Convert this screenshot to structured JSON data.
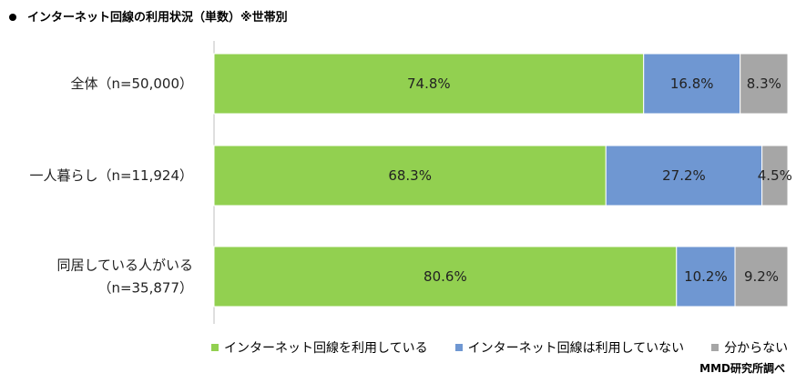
{
  "title": "インターネット回線の利用状況（単数）※世帯別",
  "source": "MMD研究所調べ",
  "colors": {
    "using": "#92d050",
    "not_using": "#6f97d2",
    "unknown": "#a6a6a6"
  },
  "chart_data": {
    "type": "bar",
    "orientation": "horizontal",
    "stacked": true,
    "percent": true,
    "categories": [
      [
        "全体（n=50,000）"
      ],
      [
        "一人暮らし（n=11,924）"
      ],
      [
        "同居している人がいる",
        "（n=35,877）"
      ]
    ],
    "series": [
      {
        "name": "インターネット回線を利用している",
        "values": [
          74.8,
          68.3,
          80.6
        ],
        "labels": [
          "74.8%",
          "68.3%",
          "80.6%"
        ]
      },
      {
        "name": "インターネット回線は利用していない",
        "values": [
          16.8,
          27.2,
          10.2
        ],
        "labels": [
          "16.8%",
          "27.2%",
          "10.2%"
        ]
      },
      {
        "name": "分からない",
        "values": [
          8.3,
          4.5,
          9.2
        ],
        "labels": [
          "8.3%",
          "4.5%",
          "9.2%"
        ]
      }
    ],
    "xlim": [
      0,
      100
    ],
    "legend_position": "bottom",
    "grid": false
  }
}
